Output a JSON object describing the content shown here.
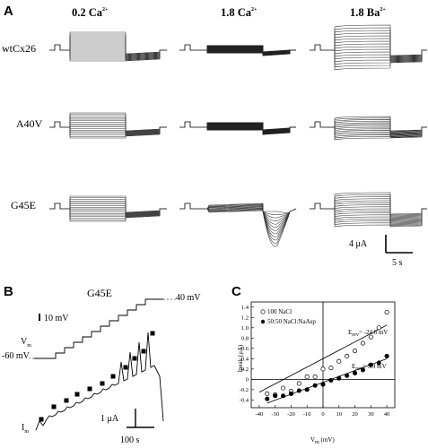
{
  "figure": {
    "panel_a": {
      "letter": "A",
      "columns": [
        {
          "main": "0.2 Ca",
          "sup": "2+"
        },
        {
          "main": "1.8 Ca",
          "sup": "2+"
        },
        {
          "main": "1.8 Ba",
          "sup": "2+"
        }
      ],
      "rows": [
        "wtCx26",
        "A40V",
        "G45E"
      ],
      "scale_current": "4 μA",
      "scale_time": "5 s"
    },
    "panel_b": {
      "letter": "B",
      "title": "G45E",
      "volt_scale": "10 mV",
      "vm_label": "V",
      "vm_sub": "m",
      "v_start": "-60 mV",
      "v_end": "40 mV",
      "im_label": "I",
      "im_sub": "m",
      "current_scale": "1 μA",
      "time_scale": "100 s",
      "steps": 11
    },
    "panel_c": {
      "letter": "C"
    }
  },
  "chart_data": {
    "type": "scatter",
    "ylabel_main": "Ipeak (",
    "ylabel_unit": "μA",
    "ylabel_end": ")",
    "xlabel_main": "V",
    "xlabel_sub": "m",
    "xlabel_unit": " (mV)",
    "xlim": [
      -40,
      40
    ],
    "ylim": [
      -0.4,
      1.4
    ],
    "x_ticks": [
      -40,
      -30,
      -20,
      -10,
      0,
      10,
      20,
      30,
      40
    ],
    "y_ticks": [
      -0.4,
      -0.2,
      0,
      0.2,
      0.4,
      0.6,
      0.8,
      1.0,
      1.2,
      1.4
    ],
    "y_tick_labels": [
      "-0.4",
      "-0.2",
      "0",
      "0.2",
      "0.4",
      "0.6",
      "0.8",
      "1.0",
      "1.2",
      "1.4"
    ],
    "series": [
      {
        "name": "100 NaCl",
        "marker": "open-circle",
        "x": [
          -35,
          -30,
          -25,
          -20,
          -15,
          -10,
          -5,
          0,
          5,
          10,
          15,
          20,
          25,
          30,
          35,
          40
        ],
        "y": [
          -0.28,
          -0.3,
          -0.17,
          -0.23,
          -0.08,
          0.05,
          0.05,
          0.2,
          0.22,
          0.35,
          0.45,
          0.55,
          0.7,
          0.82,
          1.0,
          1.3
        ],
        "fit": {
          "x": [
            -40,
            40
          ],
          "y": [
            -0.25,
            1.05
          ]
        },
        "erev_label": "E",
        "erev_sub": "rev",
        "erev_value": "= -24.6 mV"
      },
      {
        "name": "50:50 NaCl:NaAsp",
        "marker": "filled-circle",
        "x": [
          -35,
          -30,
          -25,
          -20,
          -15,
          -10,
          -5,
          0,
          5,
          10,
          15,
          20,
          25,
          30,
          35,
          40
        ],
        "y": [
          -0.38,
          -0.32,
          -0.32,
          -0.28,
          -0.22,
          -0.2,
          -0.12,
          -0.1,
          -0.02,
          0.02,
          0.07,
          0.12,
          0.18,
          0.28,
          0.32,
          0.45
        ],
        "fit": {
          "x": [
            -35,
            40
          ],
          "y": [
            -0.46,
            0.4
          ]
        },
        "erev_label": "E",
        "erev_sub": "rev",
        "erev_value": "= 5.9 mV"
      }
    ]
  }
}
